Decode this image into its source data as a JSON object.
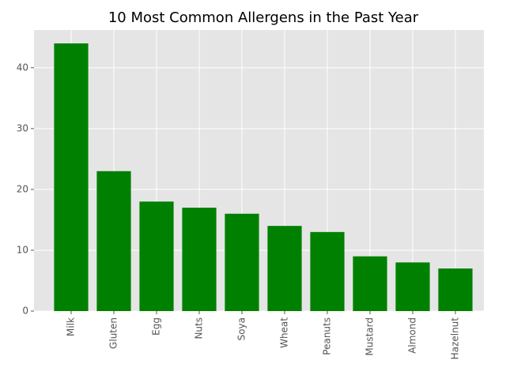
{
  "chart_data": {
    "type": "bar",
    "title": "10 Most Common Allergens in the Past Year",
    "categories": [
      "Milk",
      "Gluten",
      "Egg",
      "Nuts",
      "Soya",
      "Wheat",
      "Peanuts",
      "Mustard",
      "Almond",
      "Hazelnut"
    ],
    "values": [
      44,
      23,
      18,
      17,
      16,
      14,
      13,
      9,
      8,
      7
    ],
    "color": "#008000",
    "ylim": [
      0,
      46.2
    ],
    "yticks": [
      0,
      10,
      20,
      30,
      40
    ],
    "grid": true
  }
}
